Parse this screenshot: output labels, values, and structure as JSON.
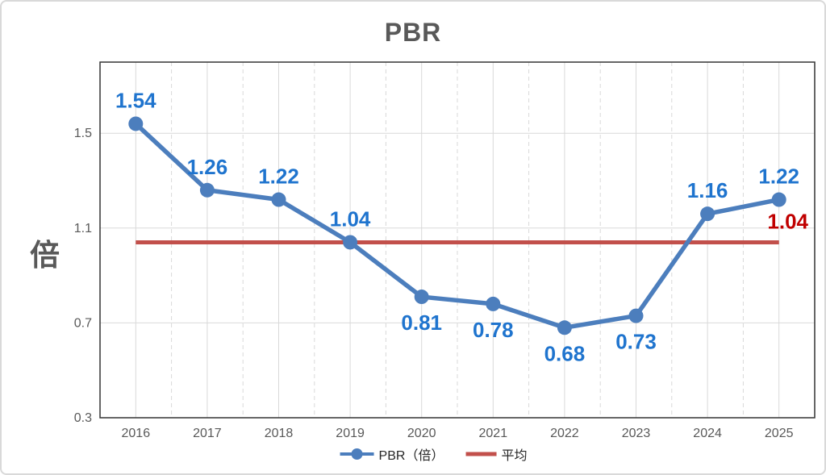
{
  "title": "PBR",
  "y_axis_title": "倍",
  "colors": {
    "series_blue": "#4C7EBD",
    "label_blue": "#1F74CE",
    "series_red": "#C2504B",
    "label_red": "#C00000",
    "gridline": "#D9D9D9",
    "axis_text": "#595959",
    "plot_border": "#333333",
    "outer_frame": "#D9D9D9",
    "legend_text": "#262626"
  },
  "legend": {
    "items": [
      {
        "label": "PBR（倍）",
        "swatch": "line-with-marker",
        "color": "#4C7EBD"
      },
      {
        "label": "平均",
        "swatch": "line",
        "color": "#C2504B"
      }
    ]
  },
  "chart_data": {
    "type": "line",
    "title": "PBR",
    "ylabel": "倍",
    "categories": [
      "2016",
      "2017",
      "2018",
      "2019",
      "2020",
      "2021",
      "2022",
      "2023",
      "2024",
      "2025"
    ],
    "series": [
      {
        "name": "PBR（倍）",
        "type": "line-marker",
        "color": "#4C7EBD",
        "label_color": "#1F74CE",
        "values": [
          1.54,
          1.26,
          1.22,
          1.04,
          0.81,
          0.78,
          0.68,
          0.73,
          1.16,
          1.22
        ],
        "labels": [
          "1.54",
          "1.26",
          "1.22",
          "1.04",
          "0.81",
          "0.78",
          "0.68",
          "0.73",
          "1.16",
          "1.22"
        ],
        "label_side": [
          "above",
          "above",
          "above",
          "above",
          "below",
          "below",
          "below",
          "below",
          "above",
          "above"
        ]
      },
      {
        "name": "平均",
        "type": "constant-line",
        "color": "#C2504B",
        "value": 1.04,
        "end_label": "1.04",
        "end_label_color": "#C00000"
      }
    ],
    "ylim": [
      0.3,
      1.8
    ],
    "ytick_values": [
      0.3,
      0.7,
      1.1,
      1.5
    ],
    "ytick_labels": [
      "0.3",
      "0.7",
      "1.1",
      "1.5"
    ],
    "grid": {
      "horizontal_major": "solid",
      "vertical_major": "solid",
      "vertical_minor": "dashed"
    },
    "legend_position": "bottom"
  }
}
